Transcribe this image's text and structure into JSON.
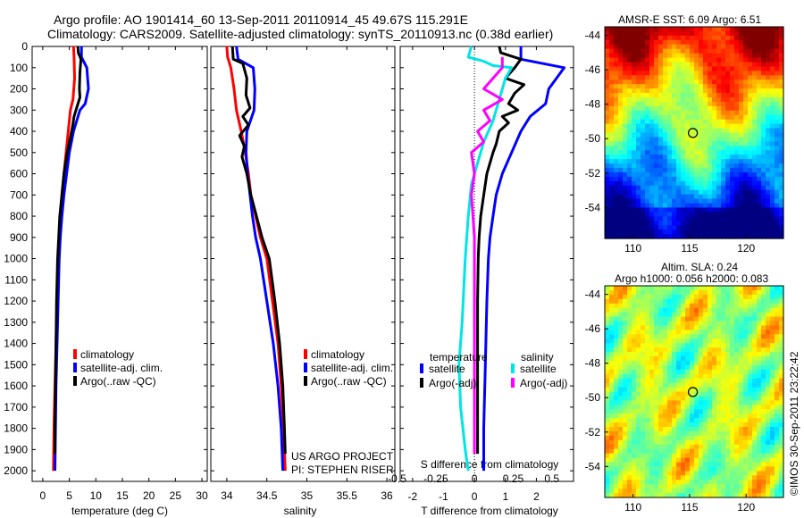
{
  "header": {
    "line1": "Argo profile: AO 1901414_60 13-Sep-2011 20110914_45 49.67S 115.291E",
    "line2": "Climatology: CARS2009. Satellite-adjusted climatology: synTS_20110913.nc (0.38d earlier)"
  },
  "colors": {
    "climatology": "#ff0000",
    "satellite": "#0000ff",
    "argo": "#000000",
    "sat_salinity": "#00e5e5",
    "argo_salinity_adj": "#ff00ff"
  },
  "depth_ticks": [
    "0",
    "100",
    "200",
    "300",
    "400",
    "500",
    "600",
    "700",
    "800",
    "900",
    "1000",
    "1100",
    "1200",
    "1300",
    "1400",
    "1500",
    "1600",
    "1700",
    "1800",
    "1900",
    "2000"
  ],
  "chart_data": [
    {
      "type": "line",
      "name": "temperature-panel",
      "xlabel": "temperature (deg C)",
      "xlim": [
        -2,
        31
      ],
      "ylim": [
        2050,
        0
      ],
      "x_ticks": [
        "0",
        "5",
        "10",
        "15",
        "20",
        "25",
        "30"
      ],
      "x_tick_values": [
        0,
        5,
        10,
        15,
        20,
        25,
        30
      ],
      "legend": [
        "climatology",
        "satellite-adj. clim.",
        "Argo(..raw -QC)"
      ],
      "series": [
        {
          "name": "climatology",
          "color": "#ff0000",
          "points": [
            [
              5.8,
              0
            ],
            [
              5.9,
              50
            ],
            [
              6.0,
              150
            ],
            [
              5.7,
              250
            ],
            [
              5.2,
              300
            ],
            [
              4.8,
              400
            ],
            [
              4.4,
              500
            ],
            [
              4.0,
              600
            ],
            [
              3.6,
              700
            ],
            [
              3.3,
              800
            ],
            [
              3.1,
              900
            ],
            [
              2.9,
              1000
            ],
            [
              2.7,
              1200
            ],
            [
              2.5,
              1400
            ],
            [
              2.3,
              1600
            ],
            [
              2.1,
              1800
            ],
            [
              2.0,
              2000
            ]
          ]
        },
        {
          "name": "satellite-adj. clim.",
          "color": "#0000ff",
          "points": [
            [
              7.3,
              0
            ],
            [
              7.3,
              50
            ],
            [
              8.3,
              100
            ],
            [
              8.6,
              200
            ],
            [
              8.0,
              270
            ],
            [
              7.0,
              300
            ],
            [
              5.8,
              400
            ],
            [
              5.0,
              500
            ],
            [
              4.5,
              600
            ],
            [
              4.0,
              700
            ],
            [
              3.6,
              800
            ],
            [
              3.3,
              900
            ],
            [
              3.1,
              1000
            ],
            [
              2.9,
              1200
            ],
            [
              2.7,
              1400
            ],
            [
              2.5,
              1600
            ],
            [
              2.4,
              1800
            ],
            [
              2.3,
              2000
            ]
          ]
        },
        {
          "name": "Argo(..raw -QC)",
          "color": "#000000",
          "points": [
            [
              6.6,
              0
            ],
            [
              6.7,
              30
            ],
            [
              7.2,
              60
            ],
            [
              7.0,
              120
            ],
            [
              6.9,
              200
            ],
            [
              7.0,
              240
            ],
            [
              6.5,
              280
            ],
            [
              5.9,
              330
            ],
            [
              5.6,
              380
            ],
            [
              5.2,
              430
            ],
            [
              4.6,
              500
            ],
            [
              4.0,
              600
            ],
            [
              3.6,
              700
            ],
            [
              3.2,
              800
            ],
            [
              3.0,
              900
            ],
            [
              2.8,
              1000
            ],
            [
              2.6,
              1200
            ],
            [
              2.5,
              1400
            ],
            [
              2.4,
              1600
            ],
            [
              2.3,
              1800
            ],
            [
              2.3,
              1920
            ]
          ]
        }
      ]
    },
    {
      "type": "line",
      "name": "salinity-panel",
      "xlabel": "salinity",
      "xlim": [
        33.8,
        36.1
      ],
      "ylim": [
        2050,
        0
      ],
      "x_ticks": [
        "34",
        "34.5",
        "35",
        "35.5",
        "36"
      ],
      "x_tick_values": [
        34,
        34.5,
        35,
        35.5,
        36
      ],
      "legend": [
        "climatology",
        "satellite-adj. clim.",
        "Argo(..raw -QC)"
      ],
      "annotations": [
        "US ARGO PROJECT",
        "PI: STEPHEN RISER"
      ],
      "series": [
        {
          "name": "climatology",
          "color": "#ff0000",
          "points": [
            [
              34.0,
              0
            ],
            [
              34.01,
              50
            ],
            [
              34.05,
              100
            ],
            [
              34.09,
              200
            ],
            [
              34.12,
              300
            ],
            [
              34.18,
              400
            ],
            [
              34.23,
              500
            ],
            [
              34.27,
              600
            ],
            [
              34.3,
              700
            ],
            [
              34.36,
              800
            ],
            [
              34.42,
              900
            ],
            [
              34.5,
              1000
            ],
            [
              34.57,
              1200
            ],
            [
              34.64,
              1400
            ],
            [
              34.68,
              1600
            ],
            [
              34.71,
              1800
            ],
            [
              34.73,
              2000
            ]
          ]
        },
        {
          "name": "satellite-adj. clim.",
          "color": "#0000ff",
          "points": [
            [
              34.12,
              0
            ],
            [
              34.14,
              60
            ],
            [
              34.33,
              100
            ],
            [
              34.35,
              200
            ],
            [
              34.34,
              300
            ],
            [
              34.25,
              400
            ],
            [
              34.24,
              500
            ],
            [
              34.26,
              600
            ],
            [
              34.29,
              700
            ],
            [
              34.32,
              800
            ],
            [
              34.36,
              900
            ],
            [
              34.42,
              1000
            ],
            [
              34.5,
              1200
            ],
            [
              34.58,
              1400
            ],
            [
              34.64,
              1600
            ],
            [
              34.68,
              1800
            ],
            [
              34.7,
              2000
            ]
          ]
        },
        {
          "name": "Argo(..raw -QC)",
          "color": "#000000",
          "points": [
            [
              34.07,
              0
            ],
            [
              34.08,
              60
            ],
            [
              34.2,
              80
            ],
            [
              34.25,
              150
            ],
            [
              34.24,
              230
            ],
            [
              34.29,
              290
            ],
            [
              34.2,
              330
            ],
            [
              34.27,
              370
            ],
            [
              34.16,
              420
            ],
            [
              34.22,
              470
            ],
            [
              34.19,
              520
            ],
            [
              34.25,
              600
            ],
            [
              34.3,
              700
            ],
            [
              34.37,
              800
            ],
            [
              34.44,
              900
            ],
            [
              34.53,
              1000
            ],
            [
              34.6,
              1200
            ],
            [
              34.66,
              1400
            ],
            [
              34.7,
              1600
            ],
            [
              34.72,
              1800
            ],
            [
              34.73,
              1920
            ]
          ]
        }
      ]
    },
    {
      "type": "line",
      "name": "difference-panel",
      "xlabel": "T difference from climatology",
      "xlabel2": "S difference from climatology",
      "xlim": [
        -2.4,
        3.2
      ],
      "ylim": [
        2050,
        0
      ],
      "x_ticks": [
        "-2",
        "-1",
        "0",
        "1",
        "2"
      ],
      "x_tick_values": [
        -2,
        -1,
        0,
        1,
        2
      ],
      "s_ticks": [
        "-0.5",
        "-0.25",
        "0",
        "0.25",
        "0.5"
      ],
      "s_tick_values": [
        -0.5,
        -0.25,
        0,
        0.25,
        0.5
      ],
      "legend_headers": [
        "temperature",
        "salinity"
      ],
      "legend": [
        "satellite",
        "Argo(-adj)",
        "satellite",
        "Argo(-adj)"
      ],
      "series": [
        {
          "name": "temperature satellite",
          "color": "#0000ff",
          "points": [
            [
              1.5,
              0
            ],
            [
              1.5,
              60
            ],
            [
              2.9,
              100
            ],
            [
              2.4,
              200
            ],
            [
              2.3,
              270
            ],
            [
              1.8,
              330
            ],
            [
              1.5,
              400
            ],
            [
              1.2,
              500
            ],
            [
              0.9,
              600
            ],
            [
              0.7,
              700
            ],
            [
              0.6,
              800
            ],
            [
              0.5,
              900
            ],
            [
              0.45,
              1000
            ],
            [
              0.4,
              1200
            ],
            [
              0.35,
              1500
            ],
            [
              0.3,
              1800
            ],
            [
              0.3,
              2000
            ]
          ]
        },
        {
          "name": "temperature Argo(-adj)",
          "color": "#000000",
          "points": [
            [
              0.8,
              0
            ],
            [
              0.85,
              30
            ],
            [
              1.5,
              60
            ],
            [
              1.3,
              100
            ],
            [
              1.0,
              150
            ],
            [
              1.6,
              180
            ],
            [
              1.3,
              220
            ],
            [
              1.1,
              270
            ],
            [
              1.4,
              300
            ],
            [
              0.9,
              330
            ],
            [
              1.1,
              360
            ],
            [
              0.8,
              400
            ],
            [
              0.7,
              460
            ],
            [
              0.6,
              500
            ],
            [
              0.4,
              600
            ],
            [
              0.3,
              700
            ],
            [
              0.2,
              800
            ],
            [
              0.15,
              900
            ],
            [
              0.12,
              1000
            ],
            [
              0.1,
              1200
            ],
            [
              0.1,
              1500
            ],
            [
              0.1,
              1800
            ],
            [
              0.1,
              1920
            ]
          ]
        },
        {
          "name": "salinity satellite",
          "color": "#00e5e5",
          "points": [
            [
              -0.1,
              0
            ],
            [
              -0.2,
              50
            ],
            [
              0.3,
              70
            ],
            [
              0.6,
              90
            ],
            [
              1.2,
              100
            ],
            [
              1.0,
              150
            ],
            [
              0.8,
              250
            ],
            [
              0.6,
              350
            ],
            [
              0.3,
              450
            ],
            [
              0.1,
              550
            ],
            [
              -0.1,
              650
            ],
            [
              -0.2,
              800
            ],
            [
              -0.3,
              1000
            ],
            [
              -0.4,
              1300
            ],
            [
              -0.5,
              1500
            ],
            [
              -0.45,
              1700
            ],
            [
              -0.3,
              1900
            ],
            [
              -0.2,
              2000
            ]
          ]
        },
        {
          "name": "salinity Argo(-adj)",
          "color": "#ff00ff",
          "points": [
            [
              0.9,
              50
            ],
            [
              0.9,
              100
            ],
            [
              0.6,
              150
            ],
            [
              0.3,
              200
            ],
            [
              0.9,
              250
            ],
            [
              0.3,
              300
            ],
            [
              0.5,
              350
            ],
            [
              0.1,
              400
            ],
            [
              0.3,
              450
            ],
            [
              -0.1,
              500
            ],
            [
              0.0,
              600
            ],
            [
              -0.1,
              700
            ],
            [
              -0.05,
              800
            ],
            [
              0.0,
              900
            ],
            [
              0.0,
              1000
            ],
            [
              0.0,
              1200
            ],
            [
              0.0,
              1500
            ],
            [
              0.0,
              1800
            ],
            [
              0.0,
              1920
            ]
          ]
        }
      ]
    },
    {
      "type": "heatmap",
      "name": "sst-map",
      "title": "AMSR-E SST: 6.09 Argo: 6.51",
      "x_ticks": [
        "110",
        "115",
        "120"
      ],
      "x_tick_values": [
        110,
        115,
        120
      ],
      "y_ticks": [
        "-44",
        "-46",
        "-48",
        "-50",
        "-52",
        "-54"
      ],
      "y_tick_values": [
        -44,
        -46,
        -48,
        -50,
        -52,
        -54
      ],
      "xlim": [
        107.5,
        123.3
      ],
      "ylim": [
        -55.8,
        -43.5
      ],
      "marker": [
        115.29,
        -49.67
      ]
    },
    {
      "type": "heatmap",
      "name": "sla-map",
      "title": "Altim. SLA: 0.24",
      "subtitle": "Argo h1000: 0.056 h2000: 0.083",
      "x_ticks": [
        "110",
        "115",
        "120"
      ],
      "x_tick_values": [
        110,
        115,
        120
      ],
      "y_ticks": [
        "-44",
        "-46",
        "-48",
        "-50",
        "-52",
        "-54"
      ],
      "y_tick_values": [
        -44,
        -46,
        -48,
        -50,
        -52,
        -54
      ],
      "xlim": [
        107.5,
        123.3
      ],
      "ylim": [
        -55.8,
        -43.5
      ],
      "marker": [
        115.29,
        -49.67
      ]
    }
  ],
  "credit": "©IMOS 30-Sep-2011 23:22:42"
}
